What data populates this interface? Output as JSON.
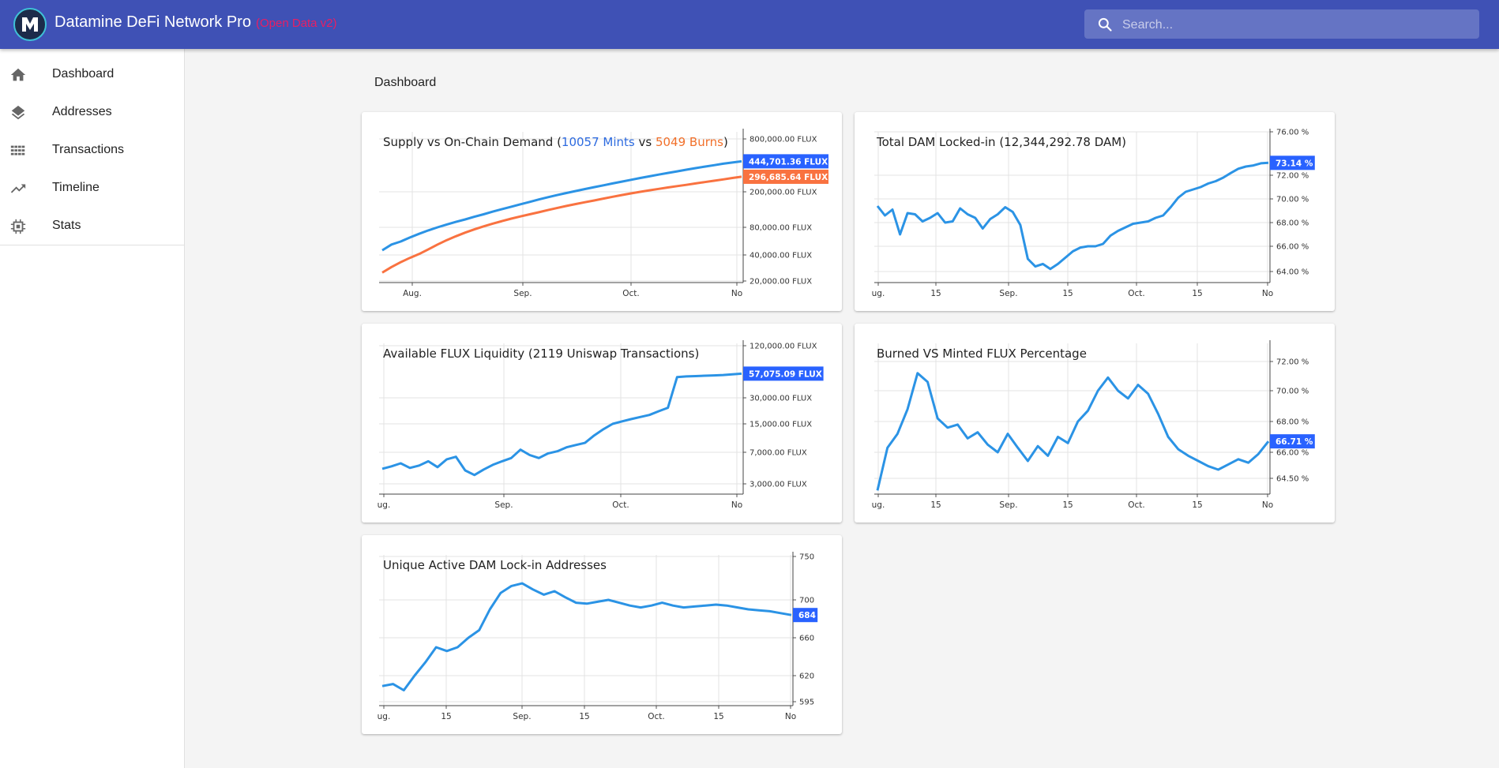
{
  "app": {
    "title": "Datamine DeFi Network Pro",
    "subtitle": "(Open Data v2)",
    "logo_icon": "datamine-logo-icon"
  },
  "search": {
    "placeholder": "Search..."
  },
  "sidebar": {
    "items": [
      {
        "label": "Dashboard",
        "icon": "home-icon"
      },
      {
        "label": "Addresses",
        "icon": "layers-icon"
      },
      {
        "label": "Transactions",
        "icon": "grid-icon"
      },
      {
        "label": "Timeline",
        "icon": "trending-up-icon"
      },
      {
        "label": "Stats",
        "icon": "chip-icon"
      }
    ]
  },
  "page": {
    "title": "Dashboard"
  },
  "colors": {
    "appbar": "#3f51b5",
    "series_blue": "#2b93e5",
    "series_orange": "#f97240",
    "badge_blue": "#2962ff",
    "badge_orange": "#f97240",
    "subtitle_pink": "#e91e63"
  },
  "cards": {
    "supply": {
      "title_prefix": "Supply vs On-Chain Demand (",
      "mints_label": "10057 Mints",
      "vs": " vs ",
      "burns_label": "5049 Burns",
      "title_suffix": ")"
    },
    "locked": {
      "title": "Total DAM Locked-in (12,344,292.78 DAM)"
    },
    "liquidity": {
      "title": "Available FLUX Liquidity (2119 Uniswap Transactions)"
    },
    "burned": {
      "title": "Burned VS Minted FLUX Percentage"
    },
    "unique": {
      "title": "Unique Active DAM Lock-in Addresses"
    }
  },
  "chart_data": [
    {
      "id": "supply",
      "type": "line",
      "scale": "log",
      "title": "Supply vs On-Chain Demand (10057 Mints vs 5049 Burns)",
      "x_ticks": [
        "Aug.",
        "Sep.",
        "Oct.",
        "No"
      ],
      "y_ticks": [
        "800,000.00 FLUX",
        "200,000.00 FLUX",
        "80,000.00 FLUX",
        "40,000.00 FLUX",
        "20,000.00 FLUX"
      ],
      "y_tick_values": [
        800000,
        200000,
        80000,
        40000,
        20000
      ],
      "ylim": [
        20000,
        800000
      ],
      "series": [
        {
          "name": "Mints",
          "color": "#2b93e5",
          "last_label": "444,701.36 FLUX",
          "values": [
            45000,
            52000,
            56000,
            62000,
            68000,
            74000,
            80000,
            86000,
            92000,
            98000,
            105000,
            112000,
            120000,
            128000,
            136000,
            145000,
            154000,
            164000,
            174000,
            184000,
            194000,
            204000,
            215000,
            226000,
            237000,
            249000,
            261000,
            274000,
            287000,
            300000,
            314000,
            328000,
            342000,
            357000,
            372000,
            387000,
            402000,
            418000,
            431000,
            444701
          ]
        },
        {
          "name": "Burns",
          "color": "#f97240",
          "last_label": "296,685.64 FLUX",
          "values": [
            25000,
            29000,
            33000,
            37000,
            41000,
            46000,
            52000,
            58000,
            64000,
            70000,
            76000,
            82000,
            88000,
            94000,
            100000,
            106000,
            112000,
            118000,
            125000,
            132000,
            139000,
            146000,
            153000,
            160000,
            168000,
            176000,
            184000,
            192000,
            200000,
            208000,
            216000,
            224000,
            232000,
            240000,
            249000,
            258000,
            267000,
            277000,
            287000,
            296686
          ]
        }
      ]
    },
    {
      "id": "locked",
      "type": "line",
      "x_ticks": [
        "ug.",
        "15",
        "Sep.",
        "15",
        "Oct.",
        "15",
        "No"
      ],
      "y_ticks": [
        "76.00 %",
        "72.00 %",
        "70.00 %",
        "68.00 %",
        "66.00 %",
        "64.00 %"
      ],
      "y_tick_values": [
        76,
        72,
        70,
        68,
        66,
        64
      ],
      "ylim": [
        63.2,
        76
      ],
      "series": [
        {
          "name": "Locked %",
          "color": "#2b93e5",
          "last_label": "73.14 %",
          "values": [
            69.4,
            68.6,
            69.1,
            67.0,
            68.8,
            68.7,
            68.1,
            68.4,
            68.8,
            68.0,
            68.1,
            69.2,
            68.7,
            68.4,
            67.5,
            68.3,
            68.7,
            69.3,
            68.9,
            67.8,
            65.0,
            64.4,
            64.6,
            64.2,
            64.6,
            65.1,
            65.6,
            65.9,
            66.0,
            66.0,
            66.2,
            66.9,
            67.3,
            67.6,
            67.9,
            68.0,
            68.1,
            68.4,
            68.6,
            69.3,
            70.1,
            70.6,
            70.8,
            71.0,
            71.3,
            71.5,
            71.8,
            72.2,
            72.6,
            72.8,
            72.9,
            73.1,
            73.14
          ]
        }
      ]
    },
    {
      "id": "liquidity",
      "type": "line",
      "scale": "log",
      "x_ticks": [
        "ug.",
        "Sep.",
        "Oct.",
        "No"
      ],
      "y_ticks": [
        "120,000.00 FLUX",
        "30,000.00 FLUX",
        "15,000.00 FLUX",
        "7,000.00 FLUX",
        "3,000.00 FLUX"
      ],
      "y_tick_values": [
        120000,
        30000,
        15000,
        7000,
        3000
      ],
      "ylim": [
        2000,
        120000
      ],
      "series": [
        {
          "name": "Liquidity",
          "color": "#2b93e5",
          "last_label": "57,075.09 FLUX",
          "values": [
            4500,
            4800,
            5200,
            4600,
            4900,
            5500,
            4700,
            5800,
            6200,
            4300,
            3800,
            4400,
            5000,
            5500,
            6000,
            7500,
            6500,
            6000,
            6800,
            7200,
            8000,
            8500,
            9000,
            11000,
            13000,
            15000,
            16000,
            17000,
            18000,
            19000,
            21000,
            23000,
            52000,
            53000,
            53500,
            54000,
            54500,
            55000,
            56000,
            57075
          ]
        }
      ]
    },
    {
      "id": "burned",
      "type": "line",
      "x_ticks": [
        "ug.",
        "15",
        "Sep.",
        "15",
        "Oct.",
        "15",
        "No"
      ],
      "y_ticks": [
        "72.00 %",
        "70.00 %",
        "68.00 %",
        "66.00 %",
        "64.50 %"
      ],
      "y_tick_values": [
        72,
        70,
        68,
        66,
        64.5
      ],
      "ylim": [
        63.5,
        73.4
      ],
      "series": [
        {
          "name": "Burned %",
          "color": "#2b93e5",
          "last_label": "66.71 %",
          "values": [
            63.8,
            66.3,
            67.2,
            68.8,
            71.2,
            70.6,
            68.2,
            67.6,
            67.8,
            66.9,
            67.3,
            66.5,
            66.0,
            67.2,
            66.3,
            65.5,
            66.4,
            65.8,
            67.0,
            66.6,
            68.0,
            68.7,
            70.0,
            70.9,
            70.0,
            69.5,
            70.4,
            69.8,
            68.5,
            67.0,
            66.2,
            65.8,
            65.5,
            65.2,
            65.0,
            65.3,
            65.6,
            65.4,
            65.9,
            66.71
          ]
        }
      ]
    },
    {
      "id": "unique",
      "type": "line",
      "x_ticks": [
        "ug.",
        "15",
        "Sep.",
        "15",
        "Oct.",
        "15",
        "No"
      ],
      "y_ticks": [
        "750",
        "700",
        "660",
        "620",
        "595"
      ],
      "y_tick_values": [
        750,
        700,
        660,
        620,
        595
      ],
      "ylim": [
        585,
        750
      ],
      "series": [
        {
          "name": "Addresses",
          "color": "#2b93e5",
          "last_label": "684",
          "values": [
            610,
            612,
            606,
            620,
            634,
            650,
            646,
            650,
            660,
            668,
            690,
            708,
            716,
            719,
            712,
            706,
            710,
            703,
            697,
            696,
            698,
            700,
            697,
            694,
            692,
            694,
            697,
            694,
            692,
            693,
            694,
            695,
            694,
            692,
            690,
            689,
            688,
            686,
            684
          ]
        }
      ]
    }
  ]
}
